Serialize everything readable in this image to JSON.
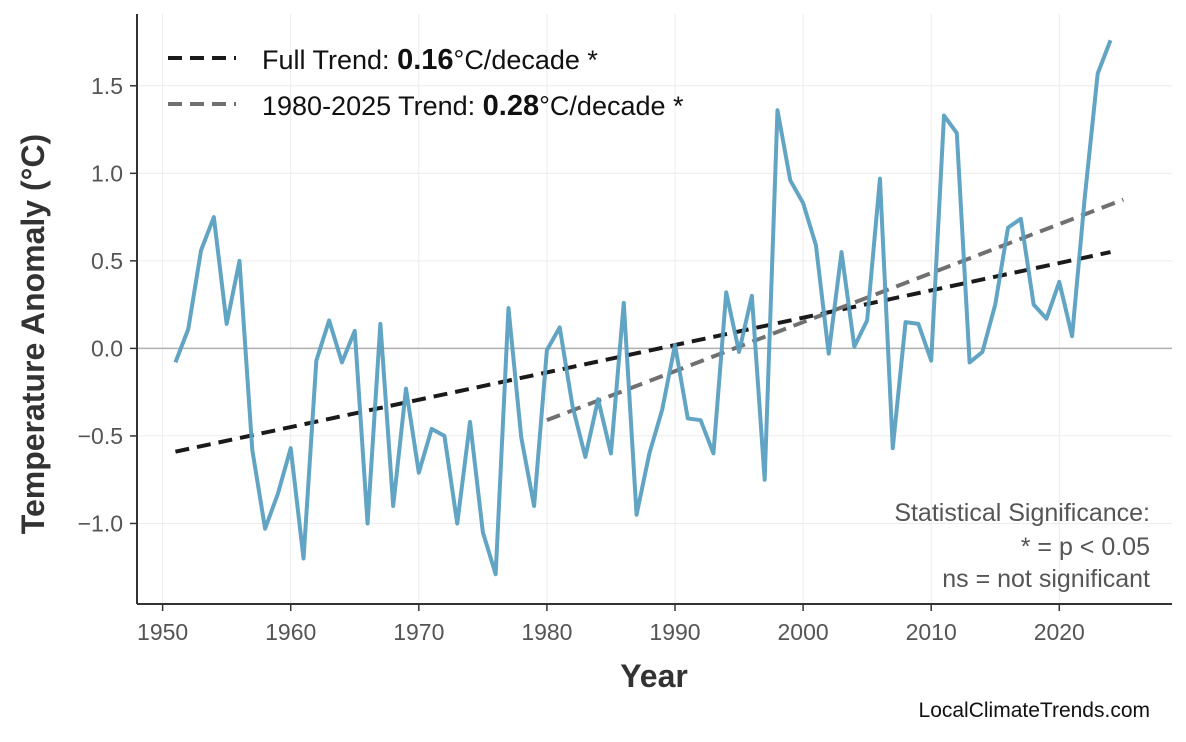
{
  "chart_data": {
    "type": "line",
    "xlabel": "Year",
    "ylabel": "Temperature Anomaly (°C)",
    "xlim": [
      1948,
      2028.8
    ],
    "ylim": [
      -1.46,
      1.91
    ],
    "grid": true,
    "legend_placement": "top-left",
    "x_ticks": [
      1950,
      1960,
      1970,
      1980,
      1990,
      2000,
      2010,
      2020
    ],
    "y_ticks": [
      -1.0,
      -0.5,
      0.0,
      0.5,
      1.0,
      1.5
    ],
    "y_tick_labels": [
      "−1.0",
      "−0.5",
      "0.0",
      "0.5",
      "1.0",
      "1.5"
    ],
    "series": [
      {
        "color": "#5a9fc0",
        "x": [
          1951,
          1952,
          1953,
          1954,
          1955,
          1956,
          1957,
          1958,
          1959,
          1960,
          1961,
          1962,
          1963,
          1964,
          1965,
          1966,
          1967,
          1968,
          1969,
          1970,
          1971,
          1972,
          1973,
          1974,
          1975,
          1976,
          1977,
          1978,
          1979,
          1980,
          1981,
          1982,
          1983,
          1984,
          1985,
          1986,
          1987,
          1988,
          1989,
          1990,
          1991,
          1992,
          1993,
          1994,
          1995,
          1996,
          1997,
          1998,
          1999,
          2000,
          2001,
          2002,
          2003,
          2004,
          2005,
          2006,
          2007,
          2008,
          2009,
          2010,
          2011,
          2012,
          2013,
          2014,
          2015,
          2016,
          2017,
          2018,
          2019,
          2020,
          2021,
          2022,
          2023,
          2024
        ],
        "y": [
          -0.08,
          0.11,
          0.56,
          0.75,
          0.14,
          0.5,
          -0.58,
          -1.03,
          -0.83,
          -0.57,
          -1.2,
          -0.07,
          0.16,
          -0.08,
          0.1,
          -1.0,
          0.14,
          -0.9,
          -0.23,
          -0.71,
          -0.46,
          -0.5,
          -1.0,
          -0.42,
          -1.05,
          -1.29,
          0.23,
          -0.51,
          -0.9,
          -0.01,
          0.12,
          -0.33,
          -0.62,
          -0.29,
          -0.6,
          0.26,
          -0.95,
          -0.6,
          -0.35,
          0.02,
          -0.4,
          -0.41,
          -0.6,
          0.32,
          -0.02,
          0.3,
          -0.75,
          1.36,
          0.96,
          0.83,
          0.59,
          -0.03,
          0.55,
          0.01,
          0.16,
          0.97,
          -0.57,
          0.15,
          0.14,
          -0.07,
          1.33,
          1.23,
          -0.08,
          -0.02,
          0.25,
          0.69,
          0.74,
          0.25,
          0.17,
          0.38,
          0.07,
          0.87,
          1.57,
          1.76
        ]
      }
    ],
    "trends": [
      {
        "label_prefix": "Full Trend: ",
        "value": "0.16",
        "label_suffix": "°C/decade *",
        "color": "#1a1a1a",
        "x": [
          1951,
          2024
        ],
        "y": [
          -0.59,
          0.55
        ]
      },
      {
        "label_prefix": "1980-2025 Trend: ",
        "value": "0.28",
        "label_suffix": "°C/decade *",
        "color": "#707070",
        "x": [
          1980,
          2025
        ],
        "y": [
          -0.41,
          0.85
        ]
      }
    ],
    "annotation": [
      "Statistical Significance:",
      "* = p < 0.05",
      "ns = not significant"
    ],
    "watermark": "LocalClimateTrends.com"
  }
}
